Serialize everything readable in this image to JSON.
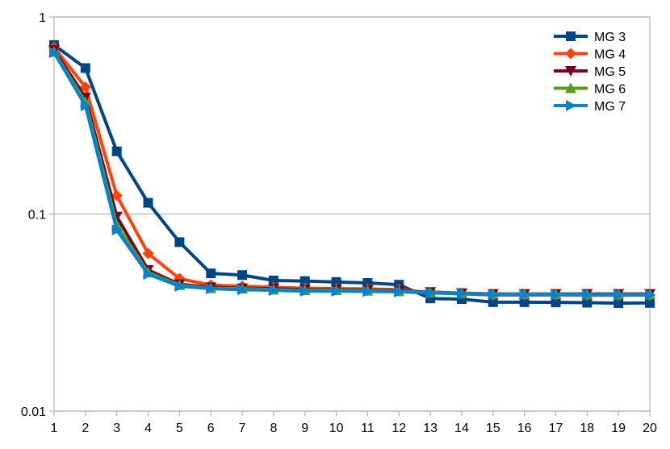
{
  "chart_data": {
    "type": "line",
    "title": "",
    "xlabel": "",
    "ylabel": "",
    "y_scale": "log",
    "ylim": [
      0.01,
      1
    ],
    "xlim": [
      1,
      20
    ],
    "y_ticks": [
      {
        "value": 0.01,
        "label": "0.01"
      },
      {
        "value": 0.1,
        "label": "0.1"
      },
      {
        "value": 1,
        "label": "1"
      }
    ],
    "x": [
      1,
      2,
      3,
      4,
      5,
      6,
      7,
      8,
      9,
      10,
      11,
      12,
      13,
      14,
      15,
      16,
      17,
      18,
      19,
      20
    ],
    "grid": "horizontal major lines",
    "legend_position": "top-right",
    "series": [
      {
        "name": "MG 3",
        "color": "#004586",
        "marker": "square",
        "values": [
          0.72,
          0.55,
          0.208,
          0.114,
          0.072,
          0.05,
          0.049,
          0.046,
          0.0457,
          0.0452,
          0.0447,
          0.0438,
          0.0373,
          0.037,
          0.0357,
          0.0357,
          0.0356,
          0.0355,
          0.0353,
          0.0354
        ]
      },
      {
        "name": "MG 4",
        "color": "#ff420e",
        "marker": "diamond",
        "values": [
          0.7,
          0.44,
          0.124,
          0.063,
          0.047,
          0.0436,
          0.043,
          0.0425,
          0.042,
          0.0418,
          0.0417,
          0.0413,
          0.0399,
          0.0393,
          0.0388,
          0.0388,
          0.0388,
          0.0387,
          0.0387,
          0.0387
        ]
      },
      {
        "name": "MG 5",
        "color": "#7e0021",
        "marker": "triangle-down",
        "values": [
          0.68,
          0.39,
          0.097,
          0.052,
          0.044,
          0.0425,
          0.042,
          0.0418,
          0.0413,
          0.0413,
          0.041,
          0.0408,
          0.0402,
          0.0397,
          0.0393,
          0.0393,
          0.0393,
          0.0393,
          0.0393,
          0.0393
        ]
      },
      {
        "name": "MG 6",
        "color": "#579d1c",
        "marker": "triangle-up",
        "values": [
          0.665,
          0.37,
          0.088,
          0.0505,
          0.0435,
          0.042,
          0.0418,
          0.0413,
          0.041,
          0.041,
          0.0408,
          0.0405,
          0.04,
          0.0396,
          0.0392,
          0.0392,
          0.0392,
          0.0391,
          0.0391,
          0.0391
        ]
      },
      {
        "name": "MG 7",
        "color": "#0084d1",
        "marker": "triangle-right",
        "values": [
          0.66,
          0.355,
          0.083,
          0.0495,
          0.043,
          0.0418,
          0.0413,
          0.041,
          0.0406,
          0.0406,
          0.0405,
          0.0403,
          0.0398,
          0.0394,
          0.039,
          0.039,
          0.039,
          0.039,
          0.0389,
          0.0389
        ]
      }
    ]
  }
}
